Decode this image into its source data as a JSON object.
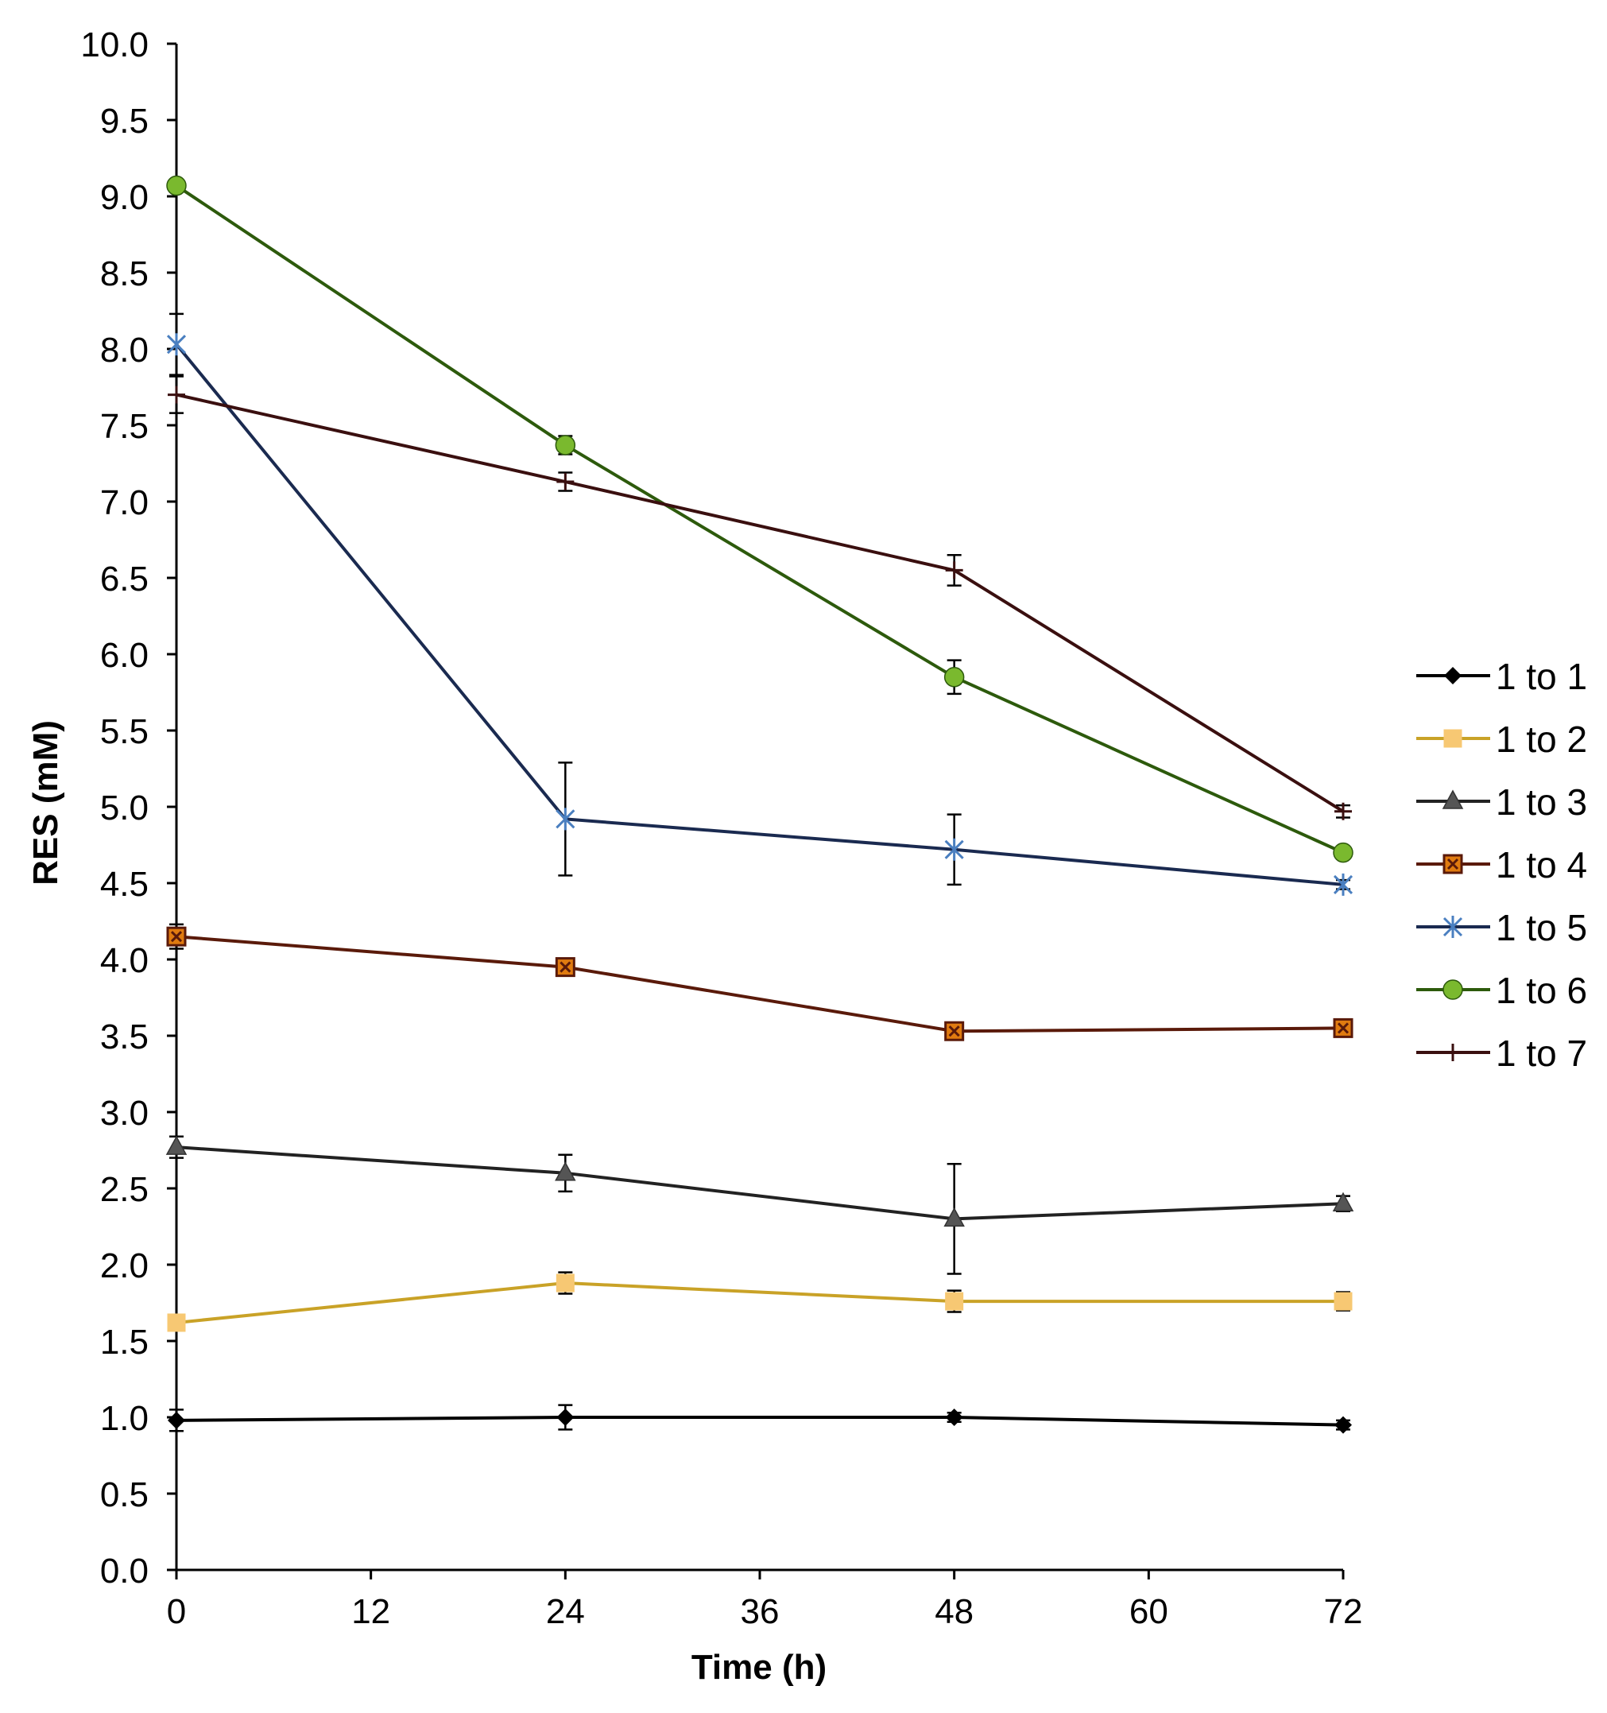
{
  "chart_data": {
    "type": "line",
    "title": "",
    "xlabel": "Time (h)",
    "ylabel": "RES (mM)",
    "xlim": [
      0,
      72
    ],
    "ylim": [
      0,
      10
    ],
    "x_ticks": [
      0,
      12,
      24,
      36,
      48,
      60,
      72
    ],
    "x_tick_labels": [
      "0",
      "12",
      "24",
      "36",
      "48",
      "60",
      "72"
    ],
    "y_ticks": [
      0,
      0.5,
      1,
      1.5,
      2,
      2.5,
      3,
      3.5,
      4,
      4.5,
      5,
      5.5,
      6,
      6.5,
      7,
      7.5,
      8,
      8.5,
      9,
      9.5,
      10
    ],
    "y_tick_labels": [
      "0.0",
      "0.5",
      "1.0",
      "1.5",
      "2.0",
      "2.5",
      "3.0",
      "3.5",
      "4.0",
      "4.5",
      "5.0",
      "5.5",
      "6.0",
      "6.5",
      "7.0",
      "7.5",
      "8.0",
      "8.5",
      "9.0",
      "9.5",
      "10.0"
    ],
    "grid": false,
    "legend_position": "right",
    "x": [
      0,
      24,
      48,
      72
    ],
    "series": [
      {
        "name": "1 to 1",
        "color": "#000000",
        "marker": "diamond",
        "values": [
          0.98,
          1.0,
          1.0,
          0.95
        ],
        "errors": [
          0.07,
          0.08,
          0.03,
          0.03
        ]
      },
      {
        "name": "1 to 2",
        "color": "#c9a227",
        "marker": "square",
        "values": [
          1.62,
          1.88,
          1.76,
          1.76
        ],
        "errors": [
          0.04,
          0.07,
          0.07,
          0.06
        ]
      },
      {
        "name": "1 to 3",
        "color": "#222222",
        "marker": "triangle",
        "values": [
          2.77,
          2.6,
          2.3,
          2.4
        ],
        "errors": [
          0.07,
          0.12,
          0.36,
          0.05
        ]
      },
      {
        "name": "1 to 4",
        "color": "#5a1a0a",
        "marker": "square-x",
        "values": [
          4.15,
          3.95,
          3.53,
          3.55
        ],
        "errors": [
          0.08,
          0.04,
          0.03,
          0.03
        ]
      },
      {
        "name": "1 to 5",
        "color": "#1a2a50",
        "marker": "star",
        "values": [
          8.03,
          4.92,
          4.72,
          4.49
        ],
        "errors": [
          0.2,
          0.37,
          0.23,
          0.03
        ]
      },
      {
        "name": "1 to 6",
        "color": "#2d5a0c",
        "marker": "circle",
        "values": [
          9.07,
          7.37,
          5.85,
          4.7
        ],
        "errors": [
          0.03,
          0.06,
          0.11,
          0.03
        ]
      },
      {
        "name": "1 to 7",
        "color": "#3a0f0f",
        "marker": "plus",
        "values": [
          7.7,
          7.13,
          6.55,
          4.97
        ],
        "errors": [
          0.12,
          0.06,
          0.1,
          0.04
        ]
      }
    ]
  },
  "colors": {
    "marker_1_to_2_fill": "#f7c873",
    "marker_1_to_3_fill": "#555555",
    "marker_1_to_4_fill": "#e07b10",
    "marker_1_to_5_stroke": "#4a7fc0",
    "marker_1_to_6_fill": "#7ab92e"
  }
}
